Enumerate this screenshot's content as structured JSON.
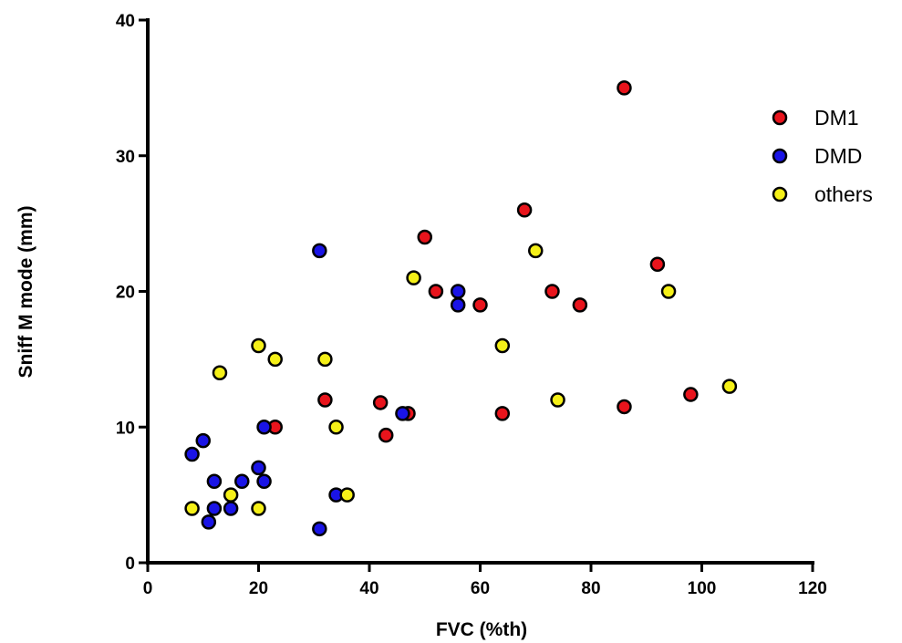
{
  "chart_data": {
    "type": "scatter",
    "title": "",
    "xlabel": "FVC (%th)",
    "ylabel": "Sniff M mode (mm)",
    "xlim": [
      0,
      120
    ],
    "ylim": [
      0,
      40
    ],
    "x_ticks": [
      0,
      20,
      40,
      60,
      80,
      100,
      120
    ],
    "y_ticks": [
      0,
      10,
      20,
      30,
      40
    ],
    "grid": false,
    "legend_position": "top-right",
    "series": [
      {
        "name": "DM1",
        "color": "#e8141c",
        "points": [
          [
            86,
            35
          ],
          [
            68,
            26
          ],
          [
            50,
            24
          ],
          [
            92,
            22
          ],
          [
            52,
            20
          ],
          [
            73,
            20
          ],
          [
            60,
            19
          ],
          [
            78,
            19
          ],
          [
            32,
            12
          ],
          [
            42,
            11.8
          ],
          [
            47,
            11
          ],
          [
            64,
            11
          ],
          [
            86,
            11.5
          ],
          [
            98,
            12.4
          ],
          [
            43,
            9.4
          ],
          [
            23,
            10
          ]
        ]
      },
      {
        "name": "DMD",
        "color": "#1a14e6",
        "points": [
          [
            31,
            23
          ],
          [
            56,
            20
          ],
          [
            56,
            19
          ],
          [
            46,
            11
          ],
          [
            21,
            10
          ],
          [
            10,
            9
          ],
          [
            8,
            8
          ],
          [
            20,
            7
          ],
          [
            12,
            6
          ],
          [
            17,
            6
          ],
          [
            21,
            6
          ],
          [
            12,
            4
          ],
          [
            15,
            4
          ],
          [
            11,
            3
          ],
          [
            34,
            5
          ],
          [
            31,
            2.5
          ]
        ]
      },
      {
        "name": "others",
        "color": "#f5f018",
        "points": [
          [
            70,
            23
          ],
          [
            48,
            21
          ],
          [
            94,
            20
          ],
          [
            20,
            16
          ],
          [
            64,
            16
          ],
          [
            23,
            15
          ],
          [
            32,
            15
          ],
          [
            13,
            14
          ],
          [
            105,
            13
          ],
          [
            74,
            12
          ],
          [
            34,
            10
          ],
          [
            15,
            5
          ],
          [
            36,
            5
          ],
          [
            8,
            4
          ],
          [
            20,
            4
          ]
        ]
      }
    ]
  }
}
